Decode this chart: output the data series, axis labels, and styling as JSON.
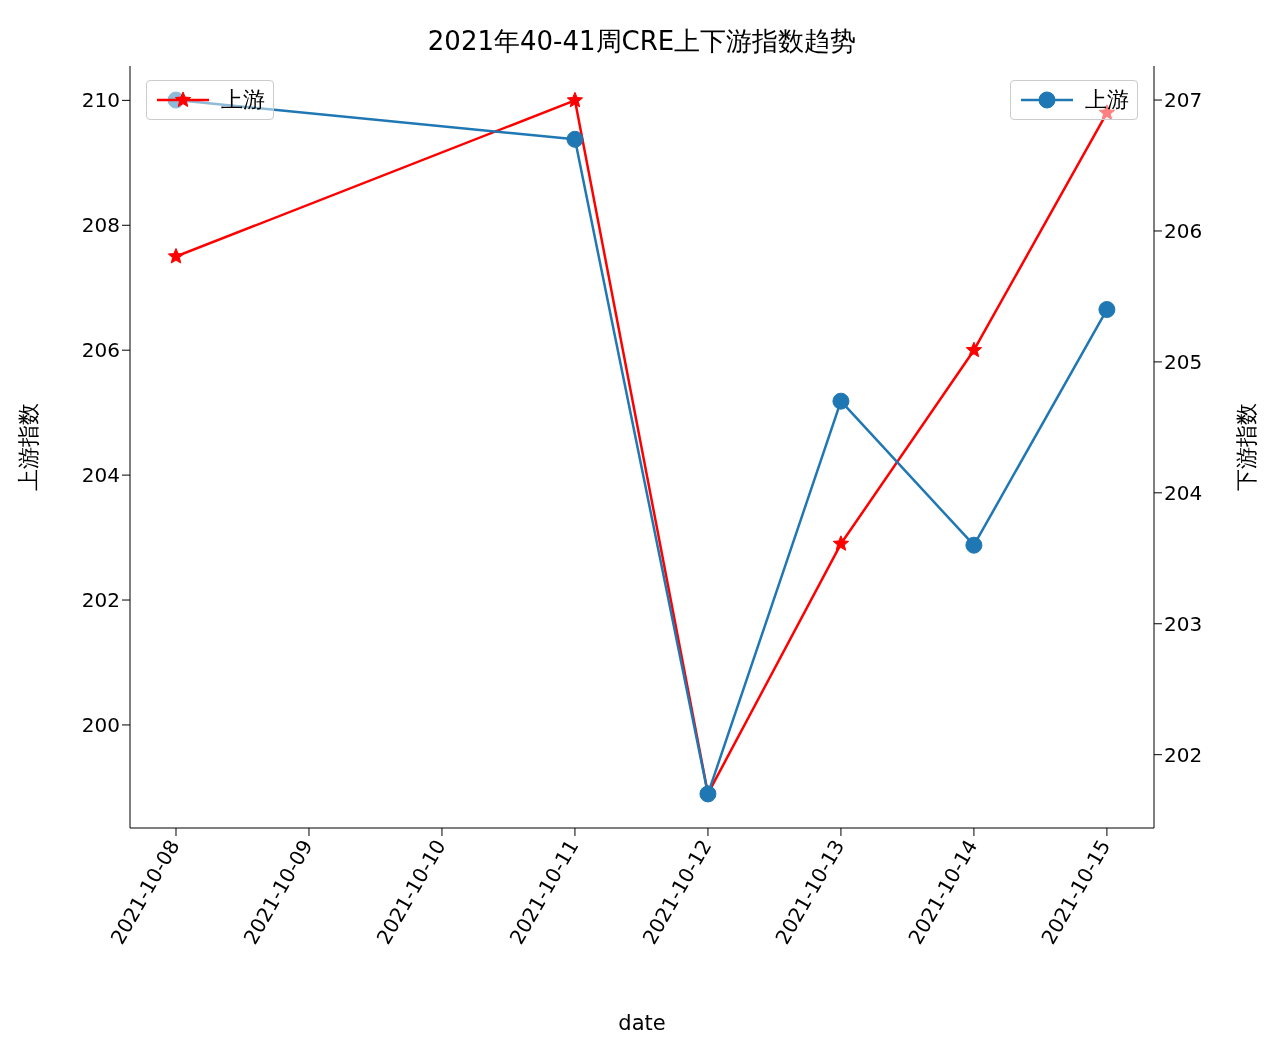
{
  "chart_data": {
    "type": "line",
    "title": "2021年40-41周CRE上下游指数趋势",
    "xlabel": "date",
    "ylabel": "上游指数",
    "y2label": "下游指数",
    "x": [
      "2021-10-08",
      "2021-10-11",
      "2021-10-12",
      "2021-10-13",
      "2021-10-14",
      "2021-10-15"
    ],
    "series": [
      {
        "name": "上游",
        "color": "#ff0000",
        "marker": "star",
        "values": [
          207.5,
          210.0,
          198.9,
          202.9,
          206.0,
          209.8
        ]
      },
      {
        "name": "上游",
        "color": "#1f77b4",
        "marker": "circle",
        "axis": "y2",
        "values": [
          207.0,
          206.7,
          201.7,
          204.7,
          203.6,
          205.4
        ]
      }
    ],
    "xlim": [
      "2021-10-07T15:42",
      "2021-10-15T08:30"
    ],
    "xticks": [
      "2021-10-08",
      "2021-10-09",
      "2021-10-10",
      "2021-10-11",
      "2021-10-12",
      "2021-10-13",
      "2021-10-14",
      "2021-10-15"
    ],
    "ylim": [
      198.35,
      210.55
    ],
    "yticks": [
      200,
      202,
      204,
      206,
      208,
      210
    ],
    "y2lim": [
      201.44,
      207.26
    ],
    "y2ticks": [
      202,
      203,
      204,
      205,
      206,
      207
    ],
    "legend": "top",
    "grid": false,
    "line_style": "solid"
  }
}
